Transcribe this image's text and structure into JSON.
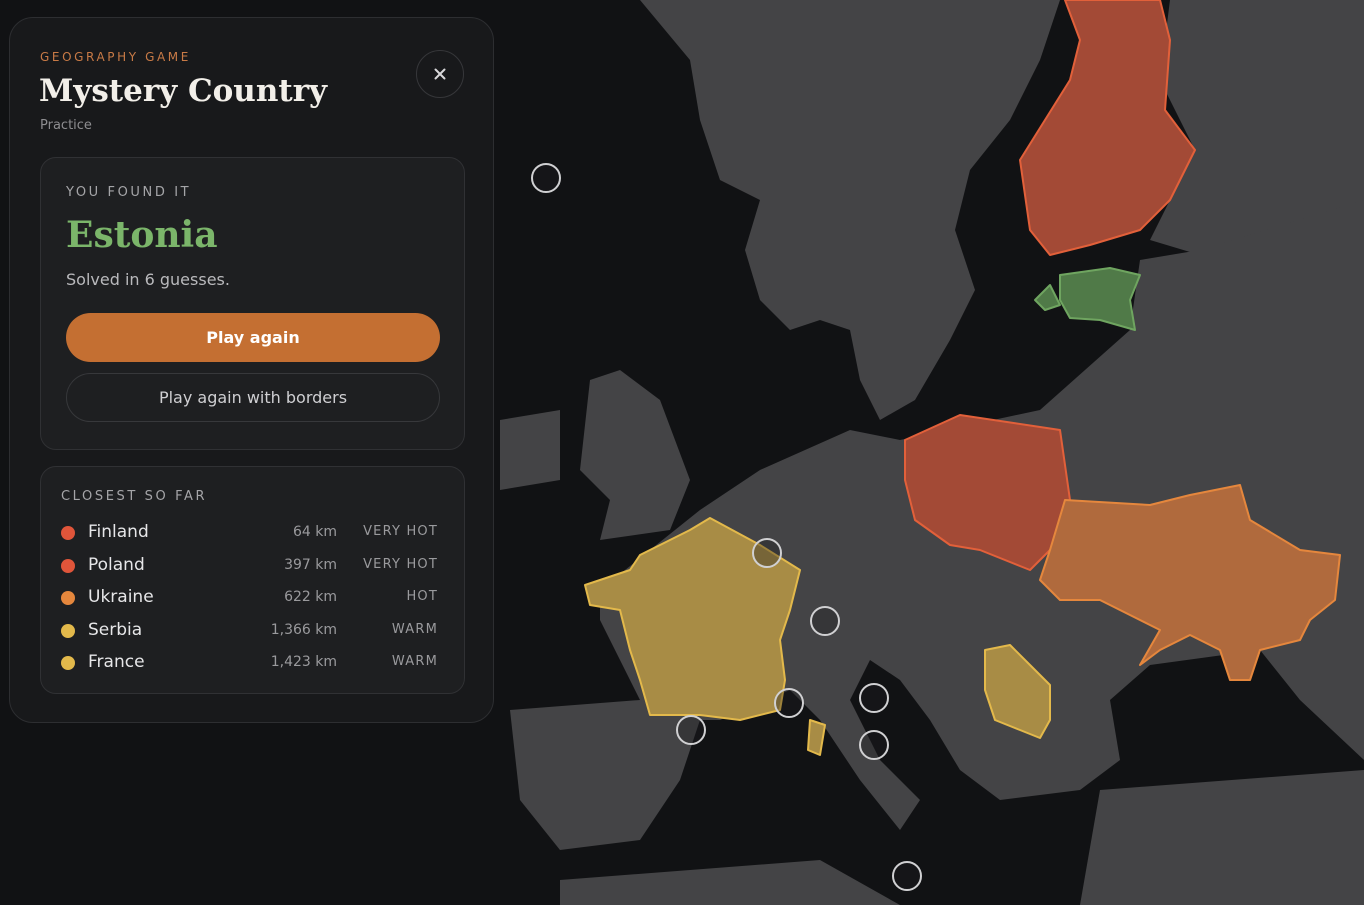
{
  "header": {
    "eyebrow": "GEOGRAPHY GAME",
    "title": "Mystery Country",
    "mode": "Practice"
  },
  "result": {
    "label": "YOU FOUND IT",
    "country": "Estonia",
    "summary": "Solved in 6 guesses.",
    "buttons": [
      "Play again",
      "Play again with borders"
    ]
  },
  "closest": {
    "label": "CLOSEST SO FAR",
    "rows": [
      {
        "name": "Finland",
        "distance": "64 km",
        "heat": "VERY HOT",
        "color": "#e0553a"
      },
      {
        "name": "Poland",
        "distance": "397 km",
        "heat": "VERY HOT",
        "color": "#e0553a"
      },
      {
        "name": "Ukraine",
        "distance": "622 km",
        "heat": "HOT",
        "color": "#e5873d"
      },
      {
        "name": "Serbia",
        "distance": "1,366 km",
        "heat": "WARM",
        "color": "#e3b94b"
      },
      {
        "name": "France",
        "distance": "1,423 km",
        "heat": "WARM",
        "color": "#e3b94b"
      }
    ]
  }
}
